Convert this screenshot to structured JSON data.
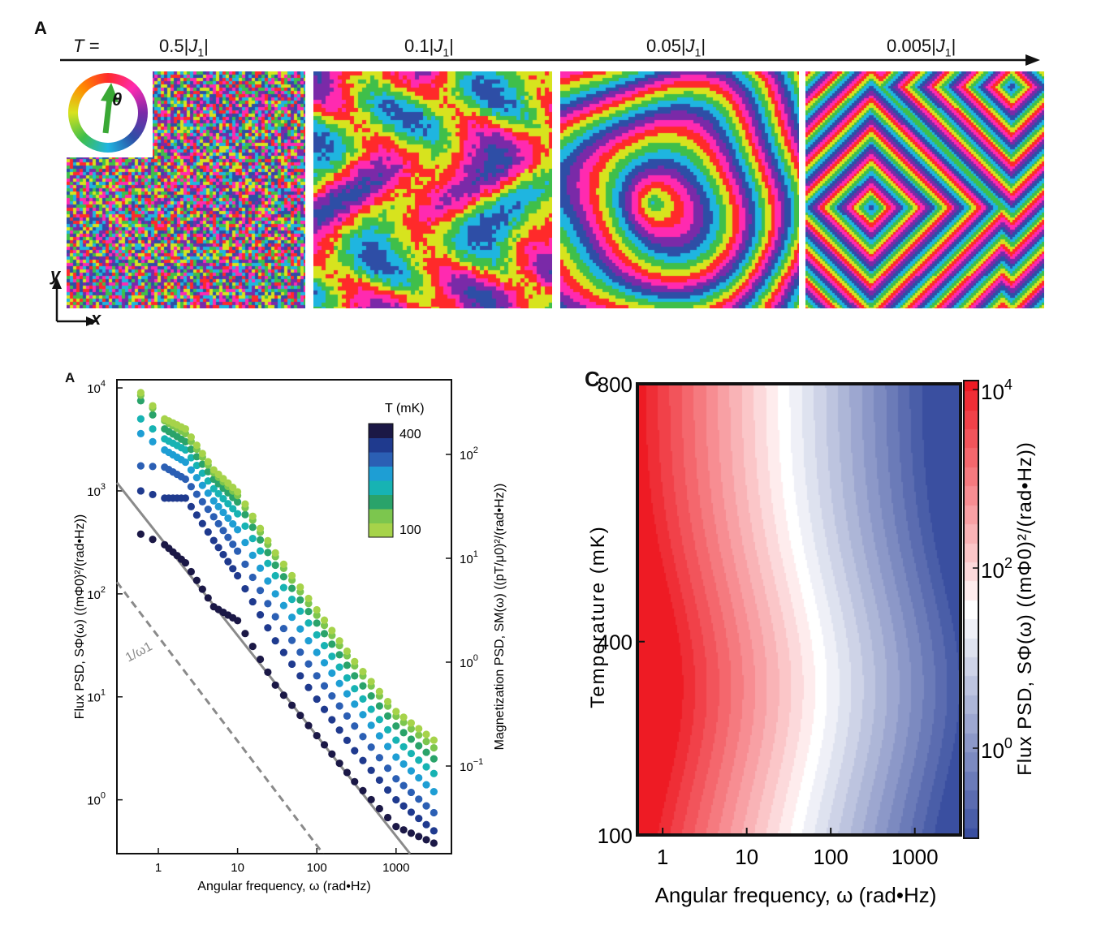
{
  "top_panel": {
    "letter": "A",
    "t_label": "T =",
    "temperatures": [
      "0.5|J1|",
      "0.1|J1|",
      "0.05|J1|",
      "0.005|J1|"
    ],
    "temp_parts": [
      {
        "value": "0.5",
        "sym": "J",
        "sub": "1"
      },
      {
        "value": "0.1",
        "sym": "J",
        "sub": "1"
      },
      {
        "value": "0.05",
        "sym": "J",
        "sub": "1"
      },
      {
        "value": "0.005",
        "sym": "J",
        "sub": "1"
      }
    ],
    "angle_symbol": "θ",
    "axis_x": "x",
    "axis_y": "y",
    "colors": [
      "#2e4ea6",
      "#1fb5e0",
      "#3fbf4a",
      "#d7e31e",
      "#ff2a2a",
      "#ff2ab0",
      "#7a2aa8"
    ]
  },
  "chart_data": [
    {
      "type": "scatter",
      "panel_letter": "A",
      "xlabel": "Angular frequency, ω (rad•Hz)",
      "ylabel": "Flux PSD,   SΦ(ω) ((mΦ0)²/(rad•Hz))",
      "y2label": "Magnetization PSD,   SM(ω) ((pT/μ0)²/(rad•Hz))",
      "x_scale": "log",
      "y_scale": "log",
      "xlim": [
        0.3,
        5000
      ],
      "ylim": [
        0.3,
        12000
      ],
      "x_ticks": [
        "1",
        "10",
        "100",
        "1000"
      ],
      "y_ticks": [
        {
          "base": "10",
          "exp": "4"
        },
        {
          "base": "10",
          "exp": "3"
        },
        {
          "base": "10",
          "exp": "2"
        },
        {
          "base": "10",
          "exp": "1"
        },
        {
          "base": "10",
          "exp": "0"
        }
      ],
      "y2_ticks": [
        {
          "base": "10",
          "exp": "2"
        },
        {
          "base": "10",
          "exp": "1"
        },
        {
          "base": "10",
          "exp": "0"
        },
        {
          "base": "10",
          "exp": "−1"
        }
      ],
      "legend": {
        "title": "T (mK)",
        "max_label": "400",
        "min_label": "100",
        "placement": "top-right"
      },
      "reference_lines": [
        {
          "label": "",
          "style": "solid",
          "color": "#8a8a8a",
          "points": [
            [
              0.3,
              1200
            ],
            [
              1500,
              0.3
            ]
          ]
        },
        {
          "label": "1/ω1",
          "style": "dashed",
          "color": "#8a8a8a",
          "points": [
            [
              0.3,
              130
            ],
            [
              120,
              0.3
            ]
          ]
        }
      ],
      "series": [
        {
          "T": 400,
          "color": "#a6d34a",
          "points": [
            [
              0.6,
              9000
            ],
            [
              1.2,
              5000
            ],
            [
              2.2,
              4000
            ],
            [
              5,
              1600
            ],
            [
              10,
              980
            ],
            [
              30,
              250
            ],
            [
              100,
              70
            ],
            [
              300,
              22
            ],
            [
              1000,
              7.2
            ],
            [
              3000,
              3.8
            ]
          ]
        },
        {
          "T": 350,
          "color": "#7cc64e",
          "points": [
            [
              0.6,
              8500
            ],
            [
              1.2,
              4800
            ],
            [
              2.2,
              3600
            ],
            [
              5,
              1500
            ],
            [
              10,
              900
            ],
            [
              30,
              230
            ],
            [
              100,
              62
            ],
            [
              300,
              20
            ],
            [
              1000,
              6.5
            ],
            [
              3000,
              3.2
            ]
          ]
        },
        {
          "T": 300,
          "color": "#2aa36a",
          "points": [
            [
              0.6,
              7500
            ],
            [
              1.2,
              4000
            ],
            [
              2.2,
              3000
            ],
            [
              5,
              1300
            ],
            [
              10,
              780
            ],
            [
              30,
              190
            ],
            [
              100,
              52
            ],
            [
              300,
              16
            ],
            [
              1000,
              5.2
            ],
            [
              3000,
              2.5
            ]
          ]
        },
        {
          "T": 250,
          "color": "#17b3b3",
          "points": [
            [
              0.6,
              5000
            ],
            [
              1.2,
              3200
            ],
            [
              2.2,
              2500
            ],
            [
              5,
              1050
            ],
            [
              10,
              600
            ],
            [
              30,
              150
            ],
            [
              100,
              40
            ],
            [
              300,
              12
            ],
            [
              1000,
              3.8
            ],
            [
              3000,
              1.8
            ]
          ]
        },
        {
          "T": 200,
          "color": "#1e9ed4",
          "points": [
            [
              0.6,
              3600
            ],
            [
              1.2,
              2500
            ],
            [
              2.2,
              1900
            ],
            [
              5,
              800
            ],
            [
              10,
              420
            ],
            [
              30,
              100
            ],
            [
              100,
              27
            ],
            [
              300,
              8.5
            ],
            [
              1000,
              2.6
            ],
            [
              3000,
              1.2
            ]
          ]
        },
        {
          "T": 150,
          "color": "#2b5fb4",
          "points": [
            [
              0.6,
              1750
            ],
            [
              1.2,
              1700
            ],
            [
              2.2,
              1300
            ],
            [
              5,
              560
            ],
            [
              10,
              260
            ],
            [
              30,
              60
            ],
            [
              100,
              16
            ],
            [
              300,
              5.2
            ],
            [
              1000,
              1.6
            ],
            [
              3000,
              0.75
            ]
          ]
        },
        {
          "T": 125,
          "color": "#1f3a8e",
          "points": [
            [
              0.6,
              1000
            ],
            [
              1.2,
              850
            ],
            [
              2.2,
              850
            ],
            [
              5,
              330
            ],
            [
              10,
              150
            ],
            [
              30,
              35
            ],
            [
              100,
              9.5
            ],
            [
              300,
              3.0
            ],
            [
              1000,
              1.0
            ],
            [
              3000,
              0.5
            ]
          ]
        },
        {
          "T": 100,
          "color": "#1b1846",
          "points": [
            [
              0.6,
              380
            ],
            [
              1.2,
              300
            ],
            [
              2.2,
              200
            ],
            [
              5,
              75
            ],
            [
              10,
              55
            ],
            [
              30,
              13
            ],
            [
              100,
              4.2
            ],
            [
              300,
              1.5
            ],
            [
              1000,
              0.55
            ],
            [
              3000,
              0.38
            ]
          ]
        }
      ]
    },
    {
      "type": "heatmap",
      "panel_letter": "C",
      "xlabel": "Angular frequency, ω (rad•Hz)",
      "ylabel": "Temperature (mK)",
      "colorbar_label": "Flux PSD,   SΦ(ω) ((mΦ0)²/(rad•Hz))",
      "x_scale": "log",
      "xlim": [
        0.5,
        3500
      ],
      "ylim": [
        100,
        800
      ],
      "x_ticks": [
        "1",
        "10",
        "100",
        "1000"
      ],
      "y_ticks": [
        "800",
        "400",
        "100"
      ],
      "colorbar_ticks": [
        {
          "base": "10",
          "exp": "4"
        },
        {
          "base": "10",
          "exp": "2"
        },
        {
          "base": "10",
          "exp": "0"
        }
      ],
      "colorbar_range_log10": [
        -1,
        4
      ],
      "colormap": [
        "#3a4fa0",
        "#ffffff",
        "#ee1b24"
      ]
    }
  ]
}
